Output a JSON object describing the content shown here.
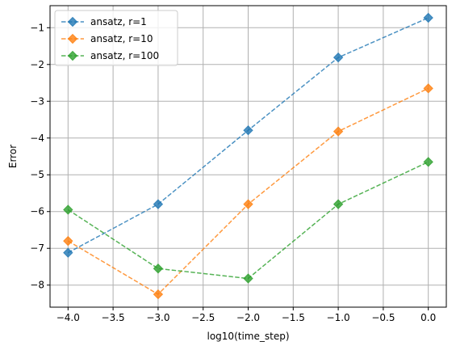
{
  "chart_data": {
    "type": "line",
    "title": "",
    "xlabel": "log10(time_step)",
    "ylabel": "Error",
    "xlim": [
      -4.2,
      0.2
    ],
    "ylim": [
      -8.6,
      -0.4
    ],
    "x_ticks": [
      -4.0,
      -3.5,
      -3.0,
      -2.5,
      -2.0,
      -1.5,
      -1.0,
      -0.5,
      0.0
    ],
    "x_tick_labels": [
      "−4.0",
      "−3.5",
      "−3.0",
      "−2.5",
      "−2.0",
      "−1.5",
      "−1.0",
      "−0.5",
      "0.0"
    ],
    "y_ticks": [
      -8,
      -7,
      -6,
      -5,
      -4,
      -3,
      -2,
      -1
    ],
    "y_tick_labels": [
      "−8",
      "−7",
      "−6",
      "−5",
      "−4",
      "−3",
      "−2",
      "−1"
    ],
    "grid": true,
    "legend_position": "top-left",
    "x": [
      -4,
      -3,
      -2,
      -1,
      0
    ],
    "series": [
      {
        "name": "ansatz, r=1",
        "color": "#1f77b4",
        "values": [
          -7.12,
          -5.8,
          -3.79,
          -1.81,
          -0.73
        ]
      },
      {
        "name": "ansatz, r=10",
        "color": "#ff7f0e",
        "values": [
          -6.8,
          -8.25,
          -5.8,
          -3.82,
          -2.65
        ]
      },
      {
        "name": "ansatz, r=100",
        "color": "#2ca02c",
        "values": [
          -5.95,
          -7.55,
          -7.82,
          -5.8,
          -4.65
        ]
      }
    ]
  }
}
